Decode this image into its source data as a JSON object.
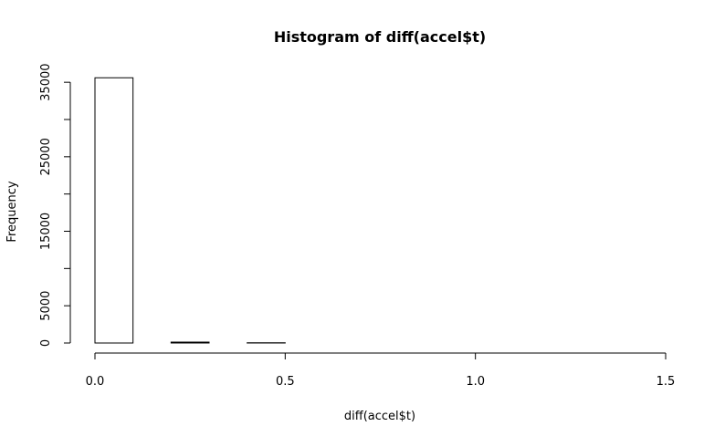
{
  "chart_data": {
    "type": "bar",
    "subtype": "histogram",
    "title": "Histogram of diff(accel$t)",
    "xlabel": "diff(accel$t)",
    "ylabel": "Frequency",
    "xlim": [
      0,
      1.5
    ],
    "ylim": [
      0,
      36000
    ],
    "x_ticks": [
      0.0,
      0.5,
      1.0,
      1.5
    ],
    "x_tick_labels": [
      "0.0",
      "0.5",
      "1.0",
      "1.5"
    ],
    "y_ticks": [
      0,
      5000,
      15000,
      25000,
      35000
    ],
    "y_tick_labels": [
      "0",
      "5000",
      "15000",
      "25000",
      "35000"
    ],
    "y_minor_ticks": [
      10000,
      20000,
      30000
    ],
    "bin_width": 0.1,
    "bins": [
      {
        "start": 0.0,
        "end": 0.1,
        "count": 35600
      },
      {
        "start": 0.1,
        "end": 0.2,
        "count": 0
      },
      {
        "start": 0.2,
        "end": 0.3,
        "count": 120
      },
      {
        "start": 0.3,
        "end": 0.4,
        "count": 0
      },
      {
        "start": 0.4,
        "end": 0.5,
        "count": 30
      },
      {
        "start": 0.5,
        "end": 0.6,
        "count": 0
      },
      {
        "start": 0.6,
        "end": 0.7,
        "count": 0
      },
      {
        "start": 0.7,
        "end": 0.8,
        "count": 0
      },
      {
        "start": 0.8,
        "end": 0.9,
        "count": 0
      },
      {
        "start": 0.9,
        "end": 1.0,
        "count": 0
      },
      {
        "start": 1.0,
        "end": 1.1,
        "count": 0
      },
      {
        "start": 1.1,
        "end": 1.2,
        "count": 0
      },
      {
        "start": 1.2,
        "end": 1.3,
        "count": 0
      },
      {
        "start": 1.3,
        "end": 1.4,
        "count": 0
      },
      {
        "start": 1.4,
        "end": 1.5,
        "count": 0
      }
    ],
    "grid": false,
    "legend": "none",
    "colors": {
      "bar_fill": "#ffffff",
      "bar_stroke": "#000000",
      "axis": "#000000",
      "background": "#ffffff"
    }
  }
}
